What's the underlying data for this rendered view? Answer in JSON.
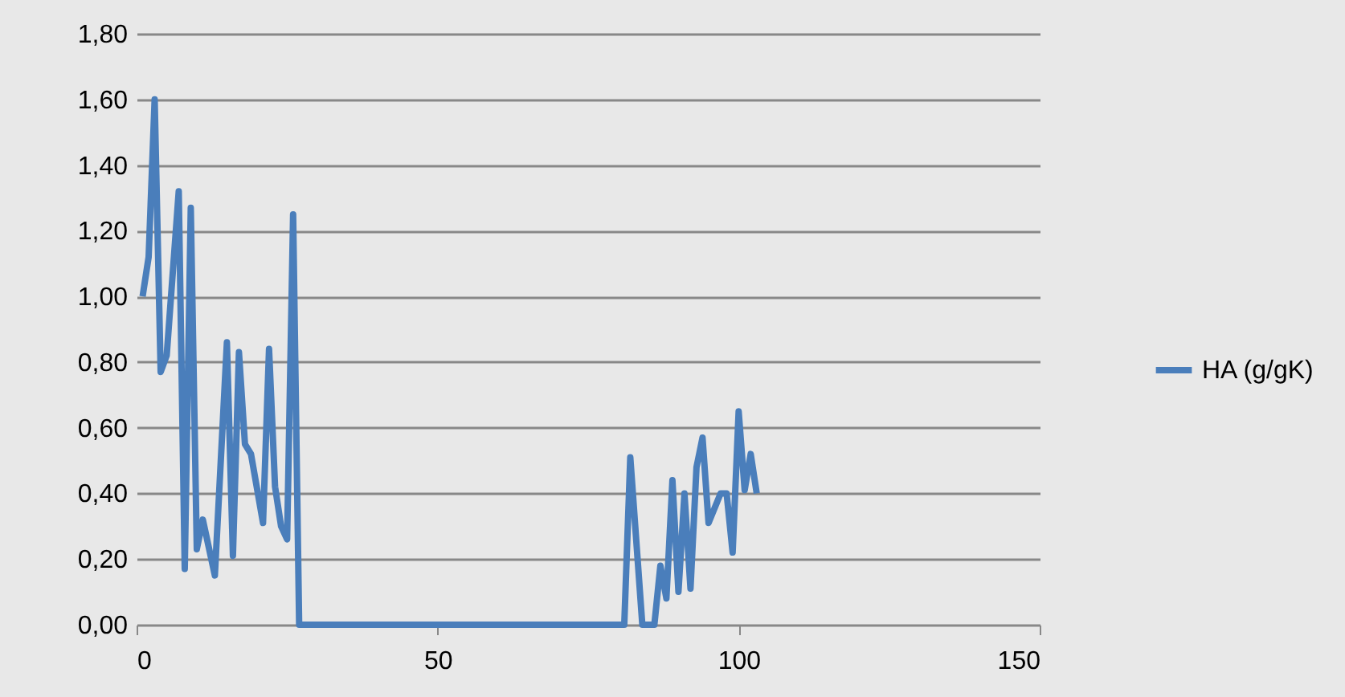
{
  "chart_data": {
    "type": "line",
    "x": [
      1,
      2,
      3,
      4,
      5,
      7,
      8,
      9,
      10,
      11,
      13,
      15,
      16,
      17,
      18,
      19,
      21,
      22,
      23,
      24,
      25,
      26,
      27,
      81,
      82,
      84,
      86,
      87,
      88,
      89,
      90,
      91,
      92,
      93,
      94,
      95,
      97,
      98,
      99,
      100,
      101,
      102,
      103
    ],
    "series": [
      {
        "name": "HA (g/gK)",
        "color": "#4a7ebb",
        "values": [
          1.0,
          1.12,
          1.6,
          0.77,
          0.82,
          1.32,
          0.17,
          1.27,
          0.23,
          0.32,
          0.15,
          0.86,
          0.21,
          0.83,
          0.55,
          0.52,
          0.31,
          0.84,
          0.42,
          0.3,
          0.26,
          1.25,
          0,
          0,
          0.51,
          0,
          0,
          0.18,
          0.08,
          0.44,
          0.1,
          0.4,
          0.11,
          0.48,
          0.57,
          0.31,
          0.4,
          0.4,
          0.22,
          0.65,
          0.41,
          0.52,
          0.4
        ]
      }
    ],
    "xlim": [
      0,
      150
    ],
    "xticks": [
      0,
      50,
      100,
      150
    ],
    "ylim": [
      0,
      1.8
    ],
    "yticks": [
      {
        "value": 0,
        "label": "0,00"
      },
      {
        "value": 0.2,
        "label": "0,20"
      },
      {
        "value": 0.4,
        "label": "0,40"
      },
      {
        "value": 0.6,
        "label": "0,60"
      },
      {
        "value": 0.8,
        "label": "0,80"
      },
      {
        "value": 1.0,
        "label": "1,00"
      },
      {
        "value": 1.2,
        "label": "1,20"
      },
      {
        "value": 1.4,
        "label": "1,40"
      },
      {
        "value": 1.6,
        "label": "1,60"
      },
      {
        "value": 1.8,
        "label": "1,80"
      }
    ],
    "grid": "y",
    "legend": "right",
    "marker": "none",
    "line_style": "solid"
  }
}
